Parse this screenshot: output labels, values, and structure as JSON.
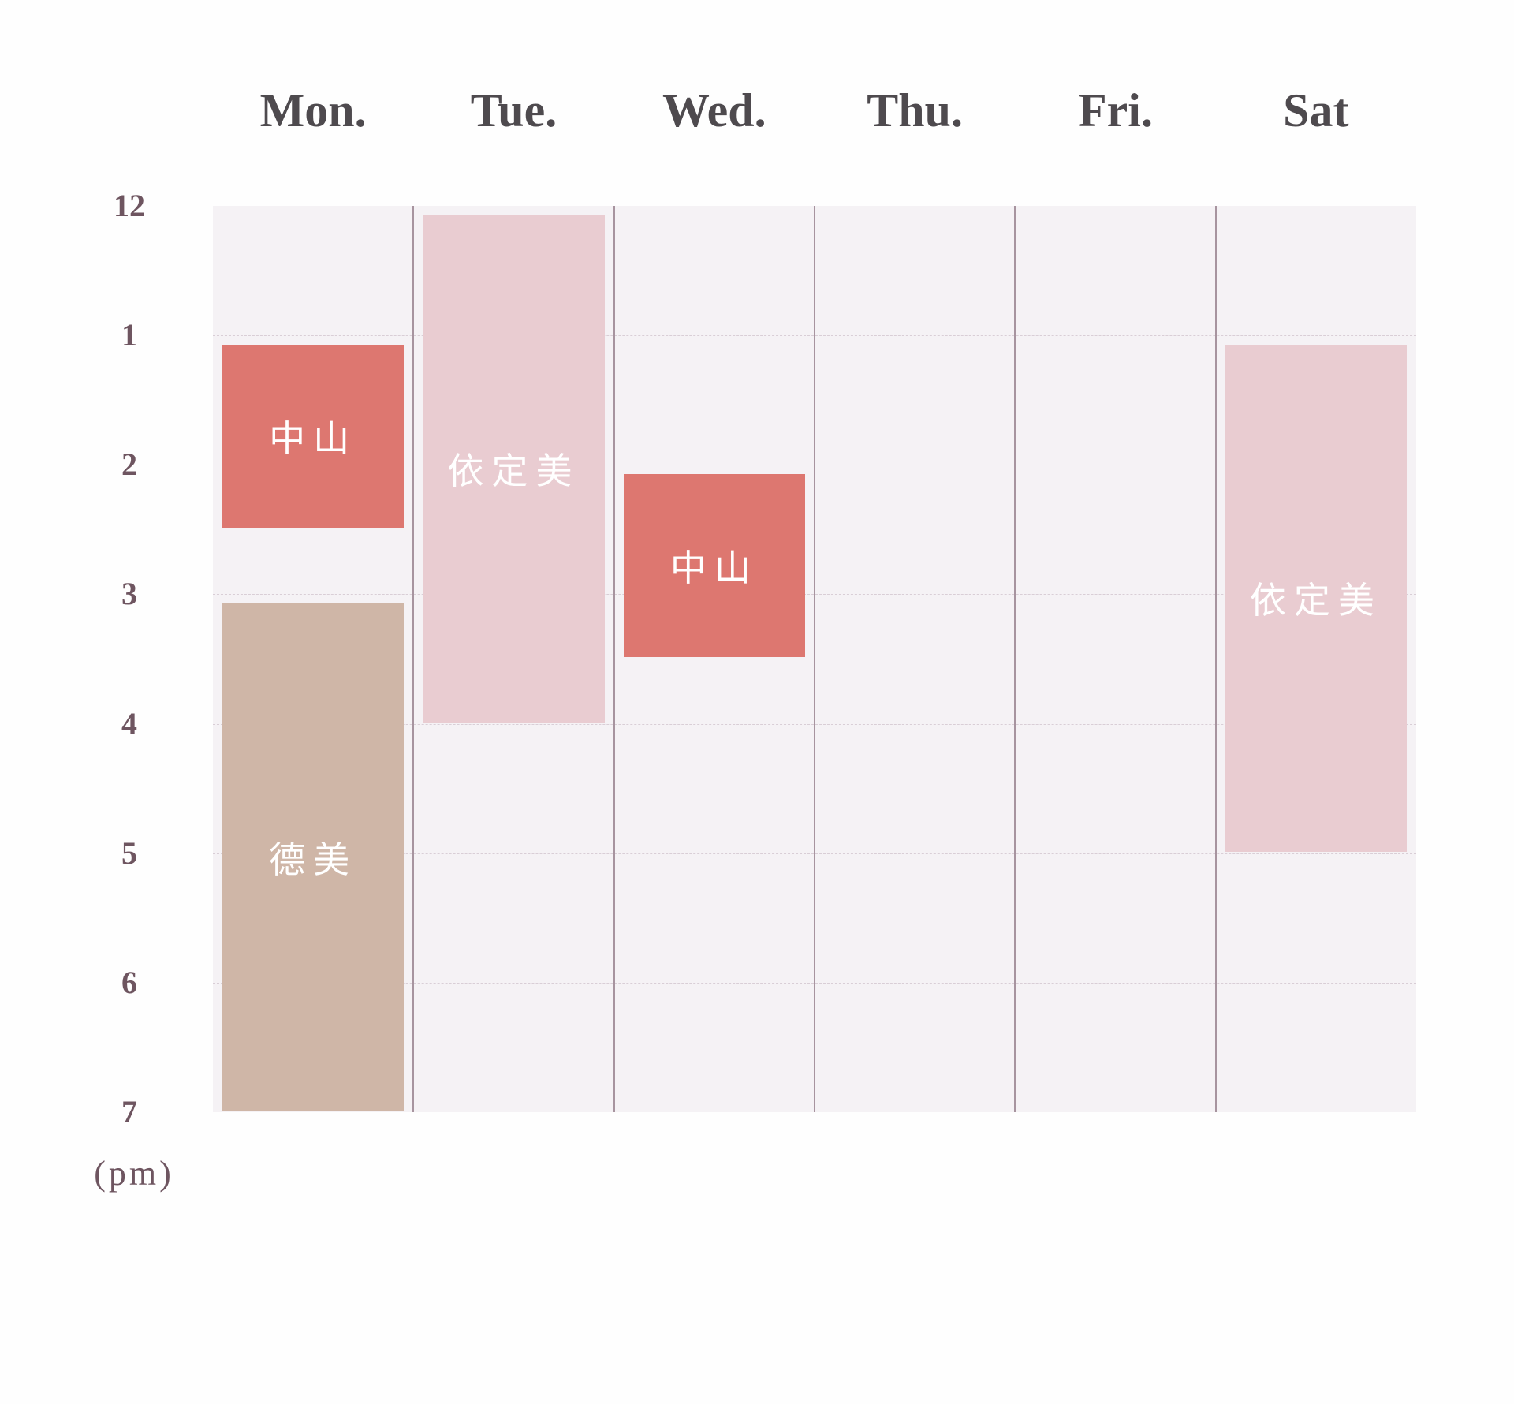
{
  "days": [
    "Mon.",
    "Tue.",
    "Wed.",
    "Thu.",
    "Fri.",
    "Sat"
  ],
  "hours": [
    "12",
    "1",
    "2",
    "3",
    "4",
    "5",
    "6",
    "7"
  ],
  "period_label": "(pm)",
  "colors": {
    "grid_background": "#f5f2f5",
    "zhongshan": "#dd7770",
    "yidingmei": "#e9ccd1",
    "demei": "#cfb6a7"
  },
  "events": [
    {
      "day": 0,
      "start": 1,
      "end": 2.5,
      "label": "中山",
      "color": "#dd7770"
    },
    {
      "day": 0,
      "start": 3,
      "end": 7,
      "label": "德美",
      "color": "#cfb6a7"
    },
    {
      "day": 1,
      "start": 0,
      "end": 4,
      "label": "依定美",
      "color": "#e9ccd1"
    },
    {
      "day": 2,
      "start": 2,
      "end": 3.5,
      "label": "中山",
      "color": "#dd7770"
    },
    {
      "day": 5,
      "start": 1,
      "end": 5,
      "label": "依定美",
      "color": "#e9ccd1"
    }
  ]
}
